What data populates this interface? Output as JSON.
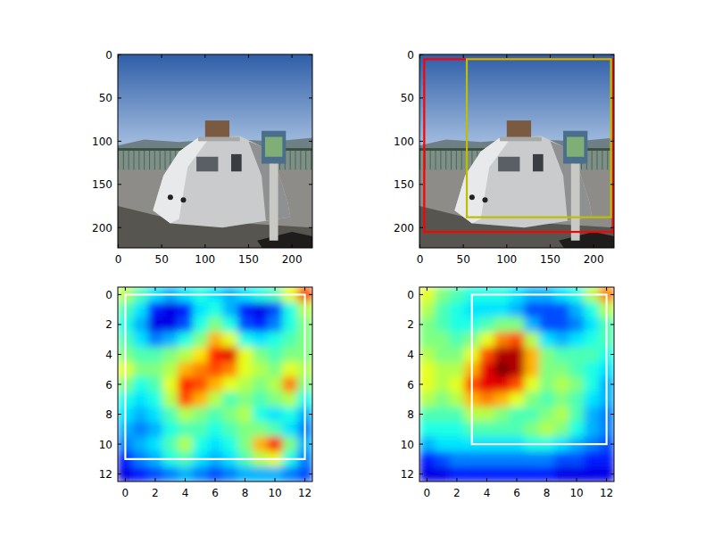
{
  "chart_data": [
    {
      "type": "image",
      "xlim": [
        -0.5,
        223.5
      ],
      "ylim": [
        223.5,
        -0.5
      ],
      "xticks": [
        0,
        50,
        100,
        150,
        200
      ],
      "yticks": [
        0,
        50,
        100,
        150,
        200
      ],
      "boxes": []
    },
    {
      "type": "image",
      "xlim": [
        -0.5,
        223.5
      ],
      "ylim": [
        223.5,
        -0.5
      ],
      "xticks": [
        0,
        50,
        100,
        150,
        200
      ],
      "yticks": [
        0,
        50,
        100,
        150,
        200
      ],
      "boxes": [
        {
          "color": "#ff0000",
          "x0": 5,
          "x1": 222,
          "y0": 5,
          "y1": 205
        },
        {
          "color": "#bfbf00",
          "x0": 54,
          "x1": 220,
          "y0": 5,
          "y1": 188
        }
      ]
    },
    {
      "type": "heatmap",
      "xlim": [
        -0.5,
        12.5
      ],
      "ylim": [
        12.5,
        -0.5
      ],
      "xticks": [
        0,
        2,
        4,
        6,
        8,
        10,
        12
      ],
      "yticks": [
        0,
        2,
        4,
        6,
        8,
        10,
        12
      ],
      "color_range": [
        0,
        1
      ],
      "boxes": [
        {
          "color": "#ffffff",
          "x0": 0,
          "x1": 12,
          "y0": 0,
          "y1": 11
        }
      ],
      "cells": [
        [
          0.55,
          0.45,
          0.35,
          0.3,
          0.35,
          0.4,
          0.35,
          0.3,
          0.35,
          0.4,
          0.45,
          0.6,
          0.8
        ],
        [
          0.45,
          0.35,
          0.15,
          0.1,
          0.15,
          0.35,
          0.4,
          0.3,
          0.15,
          0.1,
          0.2,
          0.4,
          0.55
        ],
        [
          0.4,
          0.3,
          0.1,
          0.1,
          0.2,
          0.4,
          0.5,
          0.4,
          0.2,
          0.15,
          0.25,
          0.4,
          0.5
        ],
        [
          0.45,
          0.35,
          0.25,
          0.3,
          0.4,
          0.5,
          0.7,
          0.6,
          0.4,
          0.35,
          0.4,
          0.45,
          0.5
        ],
        [
          0.5,
          0.45,
          0.45,
          0.5,
          0.55,
          0.65,
          0.85,
          0.9,
          0.6,
          0.5,
          0.45,
          0.5,
          0.5
        ],
        [
          0.6,
          0.5,
          0.5,
          0.55,
          0.7,
          0.75,
          0.8,
          0.75,
          0.6,
          0.55,
          0.5,
          0.6,
          0.55
        ],
        [
          0.5,
          0.4,
          0.45,
          0.6,
          0.85,
          0.8,
          0.7,
          0.6,
          0.55,
          0.5,
          0.55,
          0.75,
          0.5
        ],
        [
          0.4,
          0.35,
          0.4,
          0.55,
          0.8,
          0.7,
          0.55,
          0.45,
          0.5,
          0.45,
          0.5,
          0.55,
          0.4
        ],
        [
          0.35,
          0.3,
          0.35,
          0.45,
          0.55,
          0.5,
          0.45,
          0.5,
          0.55,
          0.4,
          0.35,
          0.4,
          0.3
        ],
        [
          0.3,
          0.25,
          0.3,
          0.4,
          0.45,
          0.45,
          0.4,
          0.45,
          0.5,
          0.5,
          0.45,
          0.35,
          0.25
        ],
        [
          0.25,
          0.3,
          0.35,
          0.45,
          0.55,
          0.4,
          0.35,
          0.4,
          0.5,
          0.7,
          0.85,
          0.5,
          0.3
        ],
        [
          0.15,
          0.25,
          0.3,
          0.4,
          0.45,
          0.35,
          0.3,
          0.35,
          0.45,
          0.55,
          0.6,
          0.4,
          0.25
        ],
        [
          0.1,
          0.15,
          0.2,
          0.25,
          0.3,
          0.25,
          0.2,
          0.25,
          0.3,
          0.3,
          0.3,
          0.25,
          0.2
        ]
      ]
    },
    {
      "type": "heatmap",
      "xlim": [
        -0.5,
        12.5
      ],
      "ylim": [
        12.5,
        -0.5
      ],
      "xticks": [
        0,
        2,
        4,
        6,
        8,
        10,
        12
      ],
      "yticks": [
        0,
        2,
        4,
        6,
        8,
        10,
        12
      ],
      "color_range": [
        0,
        1
      ],
      "boxes": [
        {
          "color": "#ffffff",
          "x0": 3,
          "x1": 12,
          "y0": 0,
          "y1": 10
        }
      ],
      "cells": [
        [
          0.6,
          0.5,
          0.45,
          0.4,
          0.4,
          0.4,
          0.35,
          0.3,
          0.3,
          0.35,
          0.4,
          0.55,
          0.75
        ],
        [
          0.55,
          0.45,
          0.4,
          0.35,
          0.35,
          0.35,
          0.3,
          0.2,
          0.2,
          0.2,
          0.3,
          0.4,
          0.55
        ],
        [
          0.5,
          0.45,
          0.4,
          0.4,
          0.45,
          0.5,
          0.5,
          0.3,
          0.2,
          0.2,
          0.25,
          0.35,
          0.45
        ],
        [
          0.5,
          0.5,
          0.45,
          0.5,
          0.6,
          0.75,
          0.8,
          0.55,
          0.35,
          0.3,
          0.35,
          0.4,
          0.45
        ],
        [
          0.55,
          0.5,
          0.5,
          0.6,
          0.8,
          0.95,
          0.95,
          0.7,
          0.5,
          0.45,
          0.45,
          0.45,
          0.4
        ],
        [
          0.6,
          0.55,
          0.55,
          0.7,
          0.9,
          1.0,
          0.95,
          0.7,
          0.5,
          0.5,
          0.45,
          0.4,
          0.35
        ],
        [
          0.6,
          0.55,
          0.6,
          0.8,
          0.9,
          0.9,
          0.8,
          0.6,
          0.5,
          0.55,
          0.5,
          0.4,
          0.3
        ],
        [
          0.55,
          0.5,
          0.55,
          0.7,
          0.75,
          0.7,
          0.6,
          0.5,
          0.45,
          0.5,
          0.45,
          0.35,
          0.3
        ],
        [
          0.45,
          0.45,
          0.45,
          0.55,
          0.55,
          0.5,
          0.45,
          0.45,
          0.5,
          0.55,
          0.45,
          0.3,
          0.25
        ],
        [
          0.4,
          0.4,
          0.4,
          0.45,
          0.45,
          0.45,
          0.45,
          0.5,
          0.55,
          0.5,
          0.4,
          0.3,
          0.25
        ],
        [
          0.3,
          0.35,
          0.35,
          0.35,
          0.35,
          0.35,
          0.35,
          0.4,
          0.4,
          0.35,
          0.3,
          0.25,
          0.2
        ],
        [
          0.15,
          0.2,
          0.25,
          0.25,
          0.25,
          0.25,
          0.25,
          0.25,
          0.25,
          0.2,
          0.2,
          0.15,
          0.15
        ],
        [
          0.1,
          0.1,
          0.15,
          0.15,
          0.15,
          0.15,
          0.15,
          0.15,
          0.15,
          0.1,
          0.1,
          0.1,
          0.1
        ]
      ]
    }
  ]
}
